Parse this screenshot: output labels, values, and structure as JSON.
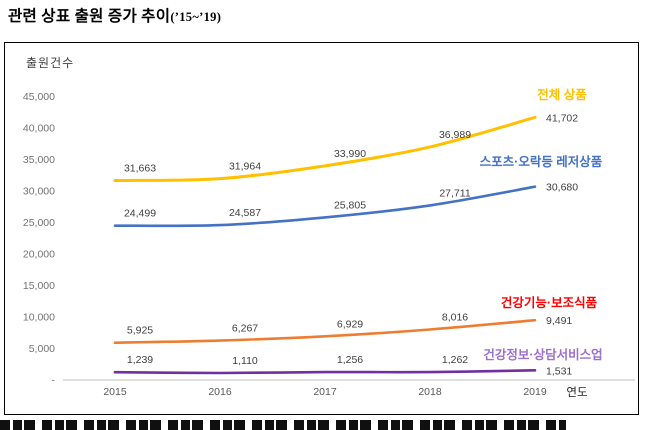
{
  "page": {
    "title": "관련 상표 출원 증가 추이",
    "title_suffix": "(’15~’19)"
  },
  "chart_data": {
    "type": "line",
    "title": "",
    "y_axis_label": "출원건수",
    "x_axis_label": "연도",
    "categories": [
      "2015",
      "2016",
      "2017",
      "2018",
      "2019"
    ],
    "y_ticks": [
      "45,000",
      "40,000",
      "35,000",
      "30,000",
      "25,000",
      "20,000",
      "15,000",
      "10,000",
      "5,000",
      "-"
    ],
    "ylim": [
      0,
      45000
    ],
    "grid": false,
    "legend_position": "inline-right",
    "value_label_color": "#404040",
    "series": [
      {
        "name": "전체 상품",
        "color": "#FFC000",
        "label_color": "#FFC000",
        "values": [
          31663,
          31964,
          33990,
          36989,
          41702
        ]
      },
      {
        "name": "스포츠·오락등 레저상품",
        "color": "#4472C4",
        "label_color": "#4472C4",
        "values": [
          24499,
          24587,
          25805,
          27711,
          30680
        ]
      },
      {
        "name": "건강기능·보조식품",
        "color": "#ED7D31",
        "label_color": "#FF0000",
        "values": [
          5925,
          6267,
          6929,
          8016,
          9491
        ]
      },
      {
        "name": "건강정보·상담서비스업",
        "color": "#7030A0",
        "label_color": "#9D6FD0",
        "values": [
          1239,
          1110,
          1256,
          1262,
          1531
        ]
      }
    ]
  }
}
